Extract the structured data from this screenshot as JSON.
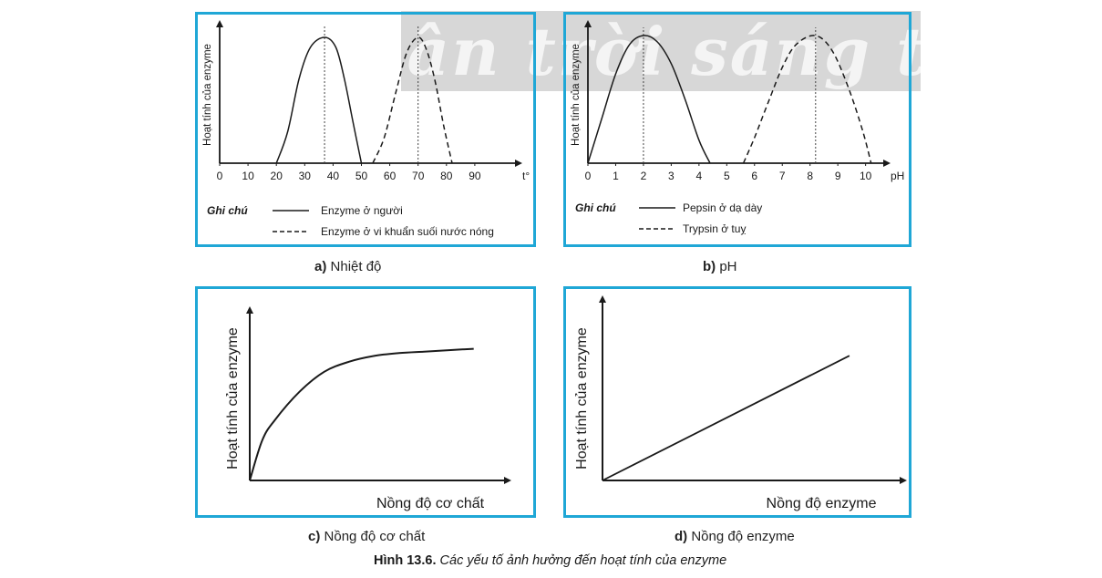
{
  "watermark": "Chân trời sáng tạo",
  "figure": {
    "number": "Hình 13.6.",
    "title": "Các yếu tố ảnh hưởng đến hoạt tính của enzyme"
  },
  "panels": {
    "a": {
      "caption_letter": "a)",
      "caption": "Nhiệt độ",
      "ylabel": "Hoạt tính của enzyme",
      "xunit": "t°",
      "legend_title": "Ghi chú",
      "legend": [
        "Enzyme ở người",
        "Enzyme ở vi khuẩn suối nước nóng"
      ]
    },
    "b": {
      "caption_letter": "b)",
      "caption": "pH",
      "ylabel": "Hoạt tính của enzyme",
      "xunit": "pH",
      "legend_title": "Ghi chú",
      "legend": [
        "Pepsin ở dạ dày",
        "Trypsin ở tuỵ"
      ]
    },
    "c": {
      "caption_letter": "c)",
      "caption": "Nồng độ cơ chất",
      "ylabel": "Hoạt tính của enzyme",
      "xlabel": "Nồng độ cơ chất"
    },
    "d": {
      "caption_letter": "d)",
      "caption": "Nồng độ enzyme",
      "ylabel": "Hoạt tính của enzyme",
      "xlabel": "Nồng độ enzyme"
    }
  },
  "chart_data": [
    {
      "type": "line",
      "xlabel": "t°",
      "ylabel": "Hoạt tính của enzyme",
      "xticks": [
        0,
        10,
        20,
        30,
        40,
        50,
        60,
        70,
        80,
        90
      ],
      "xlim": [
        0,
        100
      ],
      "ylim": [
        0,
        1
      ],
      "series": [
        {
          "name": "Enzyme ở người",
          "style": "solid",
          "x": [
            20,
            24,
            28,
            32,
            37,
            41,
            44,
            47,
            50
          ],
          "y": [
            0,
            0.25,
            0.67,
            0.92,
            1.0,
            0.92,
            0.67,
            0.33,
            0
          ]
        },
        {
          "name": "Enzyme ở vi khuẩn suối nước nóng",
          "style": "dashed",
          "x": [
            54,
            58,
            62,
            66,
            70,
            73,
            76,
            79,
            82
          ],
          "y": [
            0,
            0.2,
            0.55,
            0.88,
            1.0,
            0.9,
            0.65,
            0.3,
            0
          ]
        }
      ],
      "vlines": [
        37,
        70
      ]
    },
    {
      "type": "line",
      "xlabel": "pH",
      "ylabel": "Hoạt tính của enzyme",
      "xticks": [
        0,
        1,
        2,
        3,
        4,
        5,
        6,
        7,
        8,
        9,
        10
      ],
      "xlim": [
        0,
        10.8
      ],
      "ylim": [
        0,
        1
      ],
      "series": [
        {
          "name": "Pepsin ở dạ dày",
          "style": "solid",
          "x": [
            0,
            0.5,
            1,
            1.5,
            2,
            2.5,
            3,
            3.5,
            4,
            4.4
          ],
          "y": [
            0,
            0.35,
            0.7,
            0.93,
            1.0,
            0.95,
            0.78,
            0.5,
            0.18,
            0
          ]
        },
        {
          "name": "Trypsin ở tuỵ",
          "style": "dashed",
          "x": [
            5.6,
            6,
            6.5,
            7,
            7.5,
            8.2,
            8.8,
            9.4,
            9.9,
            10.2
          ],
          "y": [
            0,
            0.2,
            0.48,
            0.75,
            0.93,
            1.0,
            0.88,
            0.58,
            0.25,
            0
          ]
        }
      ],
      "vlines": [
        2,
        8.2
      ]
    },
    {
      "type": "line",
      "xlabel": "Nồng độ cơ chất",
      "ylabel": "Hoạt tính của enzyme",
      "xlim": [
        0,
        10
      ],
      "ylim": [
        0,
        1
      ],
      "series": [
        {
          "style": "solid",
          "x": [
            0,
            0.5,
            1,
            2,
            3,
            4,
            5,
            6,
            7,
            8,
            9
          ],
          "y": [
            0,
            0.28,
            0.42,
            0.62,
            0.76,
            0.83,
            0.87,
            0.89,
            0.9,
            0.91,
            0.92
          ]
        }
      ]
    },
    {
      "type": "line",
      "xlabel": "Nồng độ enzyme",
      "ylabel": "Hoạt tính của enzyme",
      "xlim": [
        0,
        10
      ],
      "ylim": [
        0,
        1
      ],
      "series": [
        {
          "style": "solid",
          "x": [
            0,
            9
          ],
          "y": [
            0,
            0.85
          ]
        }
      ]
    }
  ]
}
